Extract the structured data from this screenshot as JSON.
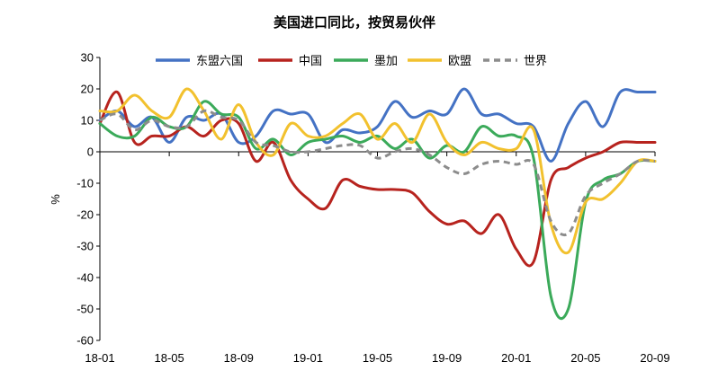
{
  "chart_data": {
    "type": "line",
    "title": "美国进口同比，按贸易伙伴",
    "xlabel": "",
    "ylabel": "%",
    "ylim": [
      -60,
      30
    ],
    "yticks": [
      30,
      20,
      10,
      0,
      -10,
      -20,
      -30,
      -40,
      -50,
      -60
    ],
    "x": [
      "18-01",
      "18-02",
      "18-03",
      "18-04",
      "18-05",
      "18-06",
      "18-07",
      "18-08",
      "18-09",
      "18-10",
      "18-11",
      "18-12",
      "19-01",
      "19-02",
      "19-03",
      "19-04",
      "19-05",
      "19-06",
      "19-07",
      "19-08",
      "19-09",
      "19-10",
      "19-11",
      "19-12",
      "20-01",
      "20-02",
      "20-03",
      "20-04",
      "20-05",
      "20-06",
      "20-07",
      "20-08",
      "20-09"
    ],
    "xticks": [
      "18-01",
      "18-05",
      "18-09",
      "19-01",
      "19-05",
      "19-09",
      "20-01",
      "20-05",
      "20-09"
    ],
    "legend_position": "top",
    "series": [
      {
        "name": "东盟六国",
        "color": "#4472C4",
        "dashed": false,
        "values": [
          10,
          13,
          8,
          11,
          3,
          11,
          10,
          12,
          3,
          5,
          13,
          12,
          12,
          3,
          7,
          6,
          8,
          16,
          11,
          13,
          12,
          20,
          12,
          12,
          9,
          8,
          -3,
          9,
          16,
          8,
          19,
          19,
          19
        ]
      },
      {
        "name": "中国",
        "color": "#B7231E",
        "dashed": false,
        "values": [
          9,
          19,
          3,
          5,
          5,
          8,
          5,
          10,
          9,
          -3,
          3,
          -9,
          -15,
          -18,
          -9,
          -11,
          -12,
          -12,
          -13,
          -19,
          -23,
          -22,
          -26,
          -20,
          -31,
          -35,
          -9,
          -5,
          -2,
          0,
          3,
          3,
          3
        ]
      },
      {
        "name": "墨加",
        "color": "#3BAA5A",
        "dashed": false,
        "values": [
          9,
          5,
          5,
          11,
          8,
          8,
          16,
          12,
          11,
          1,
          4,
          -1,
          3,
          4,
          5,
          3,
          5,
          1,
          4,
          -2,
          2,
          0,
          8,
          5,
          5,
          -2,
          -46,
          -50,
          -16,
          -9,
          -7,
          -3,
          -3
        ]
      },
      {
        "name": "欧盟",
        "color": "#F2C12E",
        "dashed": false,
        "values": [
          13,
          13,
          18,
          13,
          11,
          20,
          13,
          4,
          15,
          3,
          -1,
          9,
          5,
          5,
          9,
          12,
          4,
          9,
          3,
          12,
          3,
          -1,
          3,
          1,
          1,
          7,
          -23,
          -32,
          -16,
          -15,
          -10,
          -3,
          -3
        ]
      },
      {
        "name": "世界",
        "color": "#8C8C8C",
        "dashed": true,
        "values": [
          10,
          12,
          7,
          10,
          8,
          8,
          13,
          11,
          10,
          3,
          2,
          0,
          0,
          1,
          2,
          2,
          -2,
          0,
          1,
          -1,
          -5,
          -7,
          -4,
          -3,
          -4,
          -4,
          -22,
          -26,
          -14,
          -10,
          -7,
          -3,
          -3
        ]
      }
    ]
  }
}
